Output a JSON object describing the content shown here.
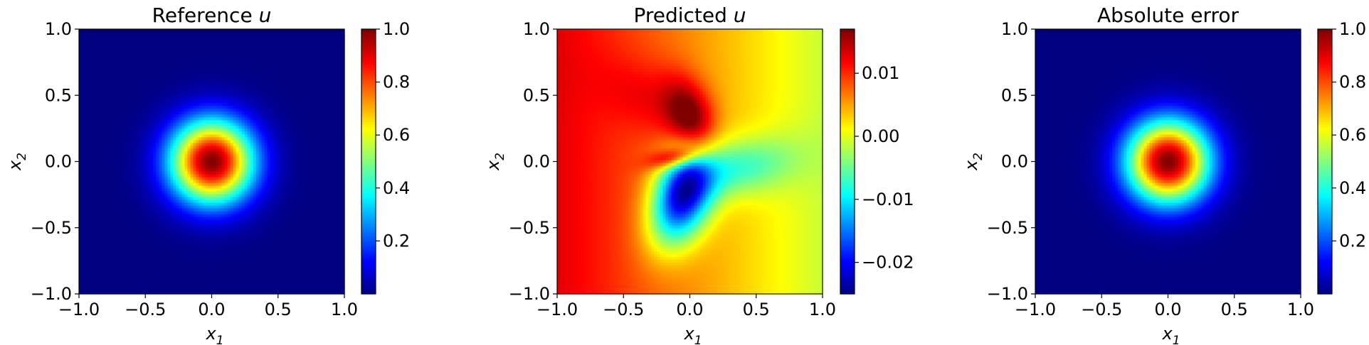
{
  "chart_data": [
    {
      "type": "heatmap",
      "title": "Reference u",
      "xlabel": "x1",
      "ylabel": "x2",
      "xlim": [
        -1.0,
        1.0
      ],
      "ylim": [
        -1.0,
        1.0
      ],
      "xticks": [
        "−1.0",
        "−0.5",
        "0.0",
        "0.5",
        "1.0"
      ],
      "yticks": [
        "−1.0",
        "−0.5",
        "0.0",
        "0.5",
        "1.0"
      ],
      "colormap": "jet",
      "colorbar_range": [
        0.0,
        1.0
      ],
      "colorbar_ticks": [
        {
          "value": 0.2,
          "label": "0.2"
        },
        {
          "value": 0.4,
          "label": "0.4"
        },
        {
          "value": 0.6,
          "label": "0.6"
        },
        {
          "value": 0.8,
          "label": "0.8"
        },
        {
          "value": 1.0,
          "label": "1.0"
        }
      ],
      "field": {
        "kind": "gaussian",
        "center": [
          0.0,
          0.0
        ],
        "peak": 1.0,
        "sigma": 0.22
      }
    },
    {
      "type": "heatmap",
      "title": "Predicted u",
      "xlabel": "x1",
      "ylabel": "x2",
      "xlim": [
        -1.0,
        1.0
      ],
      "ylim": [
        -1.0,
        1.0
      ],
      "xticks": [
        "−1.0",
        "−0.5",
        "0.0",
        "0.5",
        "1.0"
      ],
      "yticks": [
        "−1.0",
        "−0.5",
        "0.0",
        "0.5",
        "1.0"
      ],
      "colormap": "jet",
      "colorbar_range": [
        -0.025,
        0.017
      ],
      "colorbar_ticks": [
        {
          "value": -0.02,
          "label": "−0.02"
        },
        {
          "value": -0.01,
          "label": "−0.01"
        },
        {
          "value": 0.0,
          "label": "0.00"
        },
        {
          "value": 0.01,
          "label": "0.01"
        }
      ],
      "field": {
        "kind": "blobs",
        "bias": 0.006,
        "x_gradient": -0.007,
        "blobs": [
          {
            "center": [
              0.02,
              0.3
            ],
            "amp": 0.012,
            "sx": 0.12,
            "sy": 0.22,
            "rot": 0.35
          },
          {
            "center": [
              -0.25,
              0.45
            ],
            "amp": 0.004,
            "sx": 0.3,
            "sy": 0.18,
            "rot": -0.5
          },
          {
            "center": [
              -0.05,
              -0.25
            ],
            "amp": -0.028,
            "sx": 0.15,
            "sy": 0.27,
            "rot": -0.35
          },
          {
            "center": [
              0.35,
              -0.05
            ],
            "amp": -0.01,
            "sx": 0.3,
            "sy": 0.15,
            "rot": 0.2
          },
          {
            "center": [
              -0.12,
              0.03
            ],
            "amp": 0.012,
            "sx": 0.13,
            "sy": 0.05,
            "rot": 0.2
          }
        ]
      }
    },
    {
      "type": "heatmap",
      "title": "Absolute error",
      "xlabel": "x1",
      "ylabel": "x2",
      "xlim": [
        -1.0,
        1.0
      ],
      "ylim": [
        -1.0,
        1.0
      ],
      "xticks": [
        "−1.0",
        "−0.5",
        "0.0",
        "0.5",
        "1.0"
      ],
      "yticks": [
        "−1.0",
        "−0.5",
        "0.0",
        "0.5",
        "1.0"
      ],
      "colormap": "jet",
      "colorbar_range": [
        0.0,
        1.0
      ],
      "colorbar_ticks": [
        {
          "value": 0.2,
          "label": "0.2"
        },
        {
          "value": 0.4,
          "label": "0.4"
        },
        {
          "value": 0.6,
          "label": "0.6"
        },
        {
          "value": 0.8,
          "label": "0.8"
        },
        {
          "value": 1.0,
          "label": "1.0"
        }
      ],
      "field": {
        "kind": "gaussian",
        "center": [
          0.0,
          0.0
        ],
        "peak": 1.0,
        "sigma": 0.22
      }
    }
  ]
}
